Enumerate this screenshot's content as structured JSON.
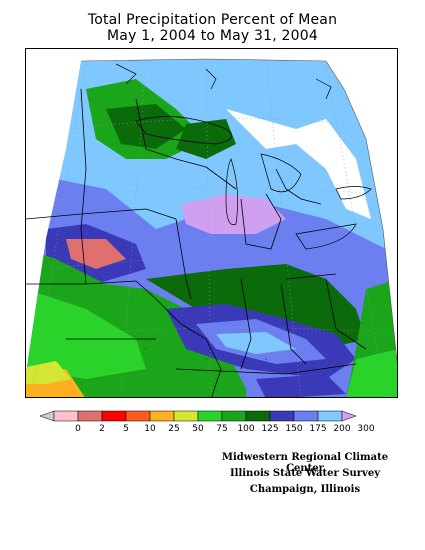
{
  "header": {
    "title_line1": "Total Precipitation Percent of Mean",
    "title_line2": "May 1, 2004 to May 31, 2004"
  },
  "legend": {
    "unit": "percent of mean",
    "bins": [
      {
        "label": "0",
        "color": "#ffc0cb"
      },
      {
        "label": "2",
        "color": "#e07070"
      },
      {
        "label": "5",
        "color": "#ff0000"
      },
      {
        "label": "10",
        "color": "#ff5a1e"
      },
      {
        "label": "25",
        "color": "#ffb020"
      },
      {
        "label": "50",
        "color": "#d2e633"
      },
      {
        "label": "75",
        "color": "#2ad32a"
      },
      {
        "label": "100",
        "color": "#1aa51a"
      },
      {
        "label": "125",
        "color": "#0b6b0b"
      },
      {
        "label": "150",
        "color": "#3a3ab8"
      },
      {
        "label": "175",
        "color": "#6c7ff0"
      },
      {
        "label": "200",
        "color": "#7fc8ff"
      },
      {
        "label": "300",
        "color": "#d0a0f0"
      }
    ]
  },
  "credits": {
    "line1": "Midwestern Regional Climate Center",
    "line2": "Illinois State Water Survey",
    "line3": "Champaign, Illinois"
  }
}
